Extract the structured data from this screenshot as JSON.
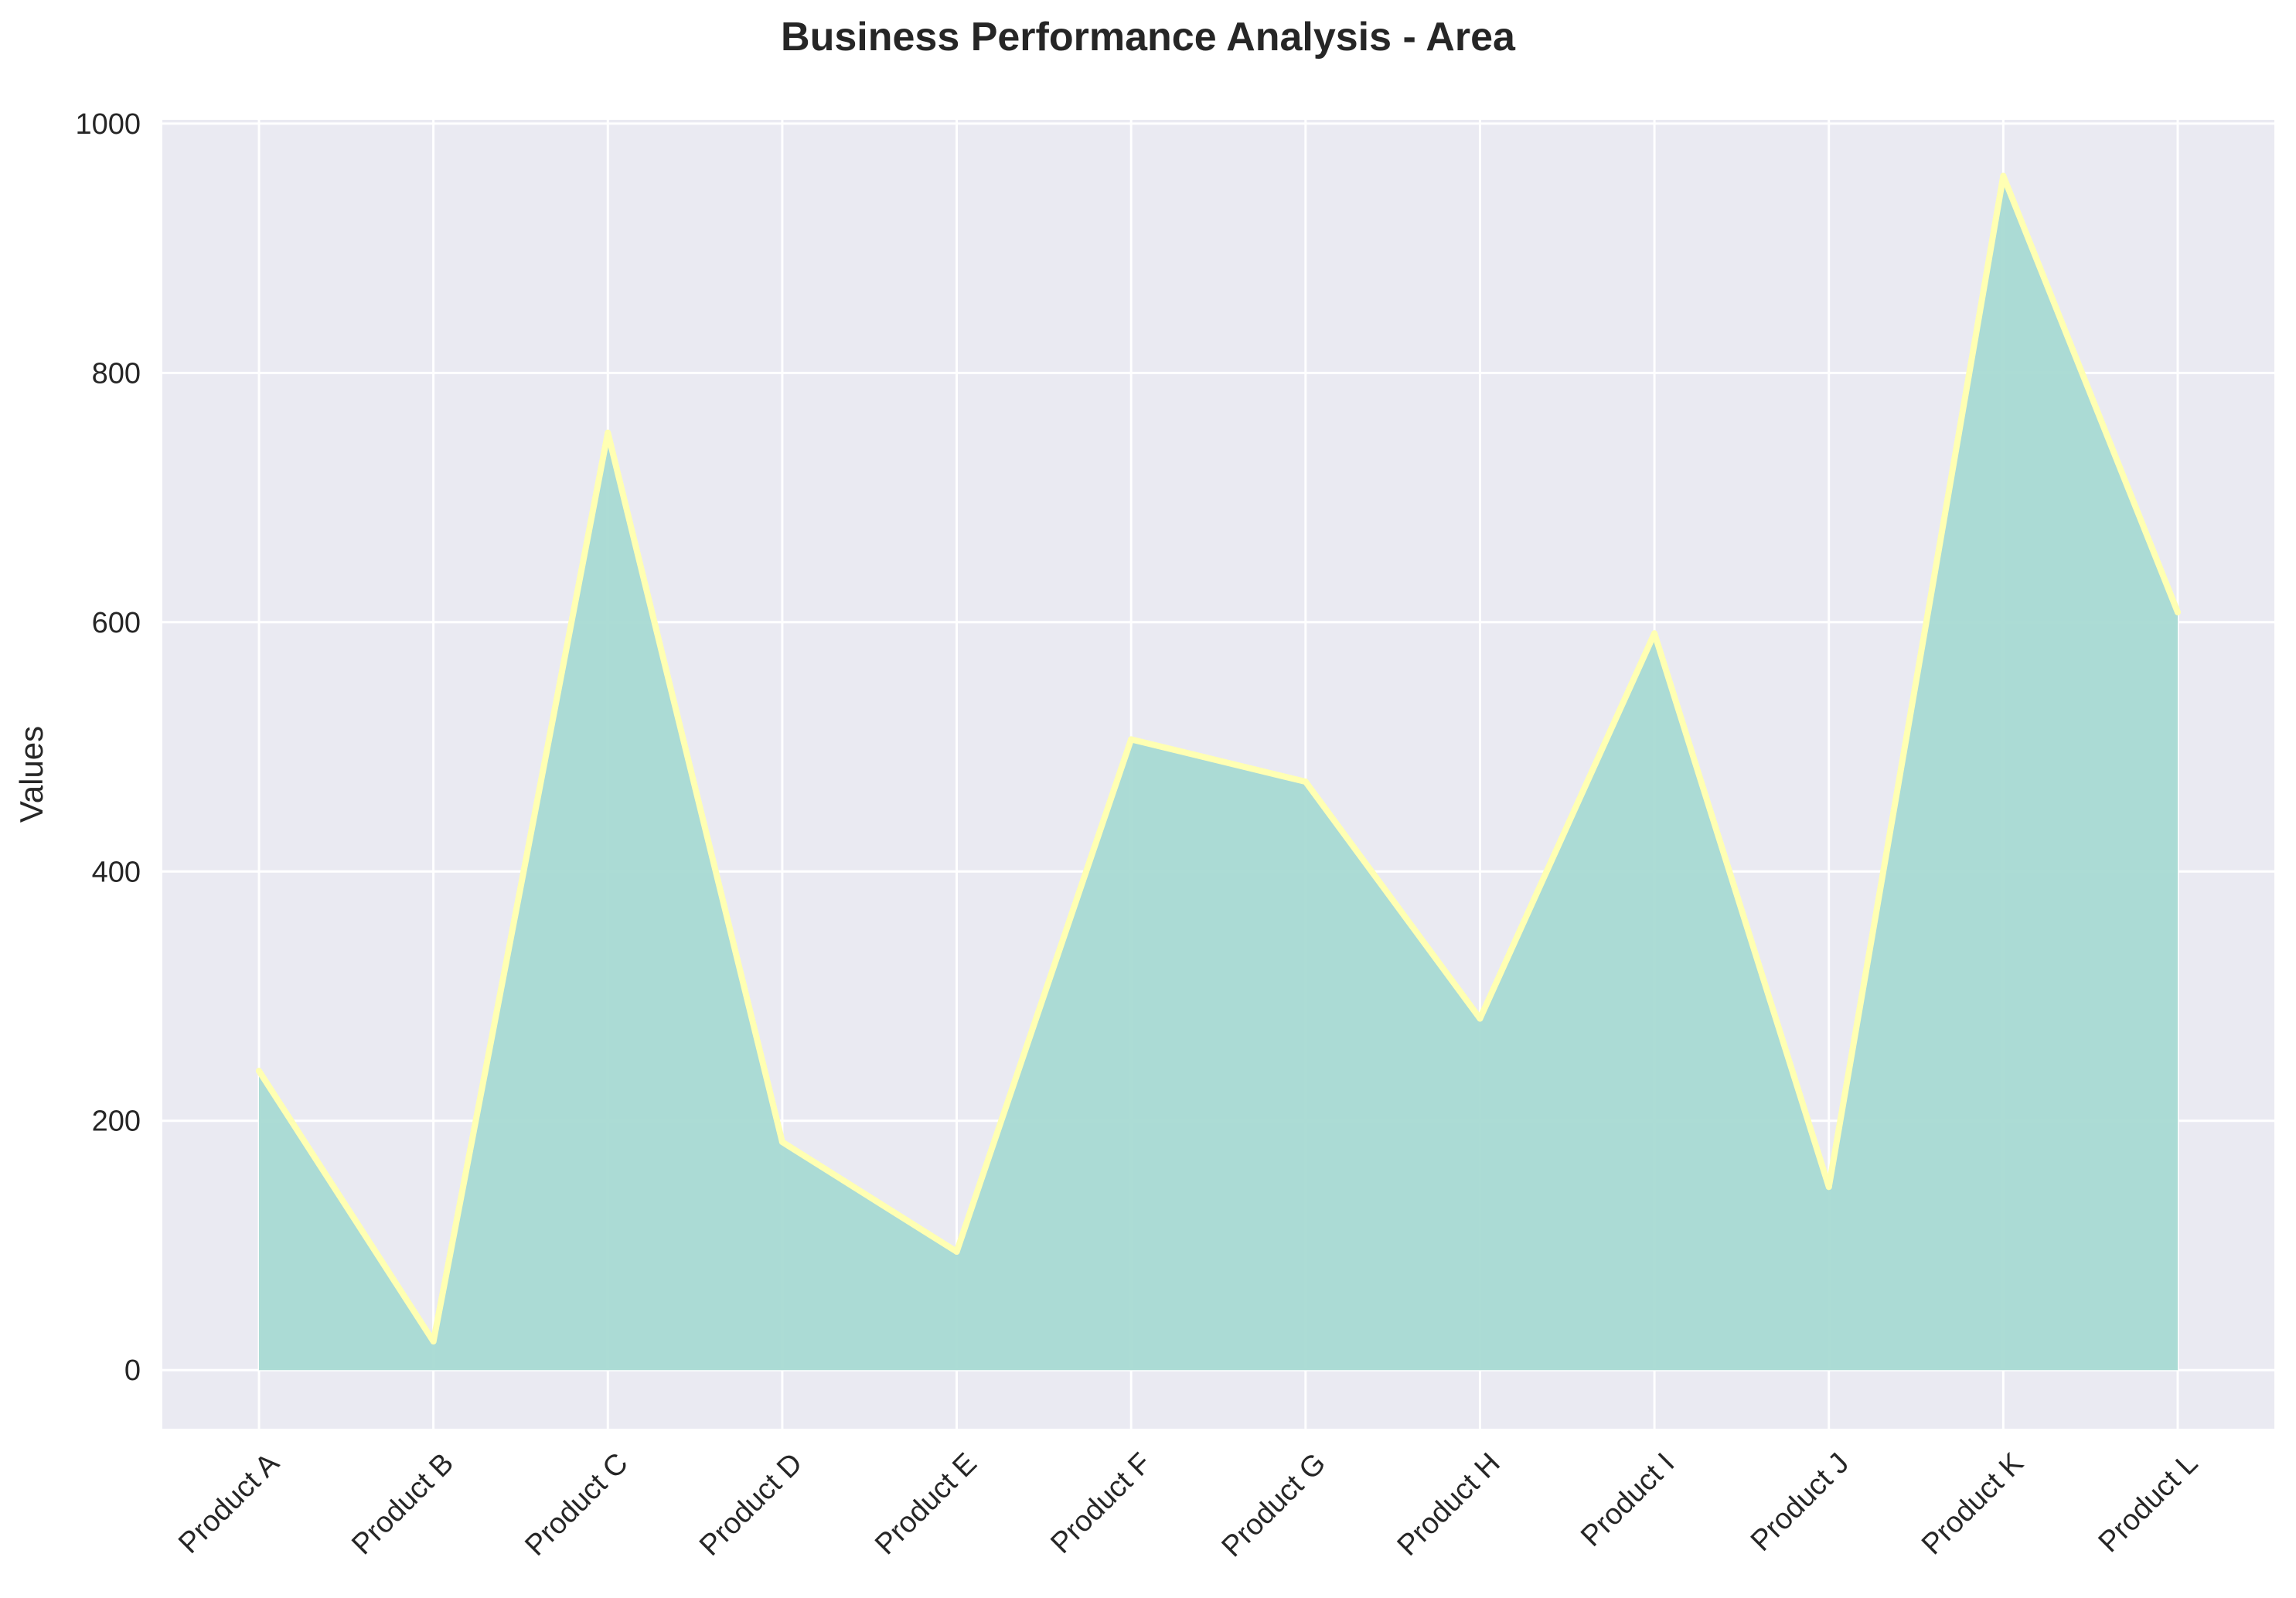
{
  "chart_data": {
    "type": "area",
    "title": "Business Performance Analysis - Area",
    "xlabel": "",
    "ylabel": "Values",
    "categories": [
      "Product A",
      "Product B",
      "Product C",
      "Product D",
      "Product E",
      "Product F",
      "Product G",
      "Product H",
      "Product I",
      "Product J",
      "Product K",
      "Product L"
    ],
    "values": [
      240,
      23,
      752,
      183,
      95,
      506,
      472,
      282,
      591,
      147,
      958,
      608
    ],
    "ylim": [
      -47,
      1003
    ],
    "yticks": [
      0,
      200,
      400,
      600,
      800,
      1000
    ],
    "grid": true,
    "colors": {
      "fill": "#a8dad3",
      "line": "#ffffb3",
      "plot_background": "#eaeaf2",
      "grid": "#ffffff"
    }
  }
}
